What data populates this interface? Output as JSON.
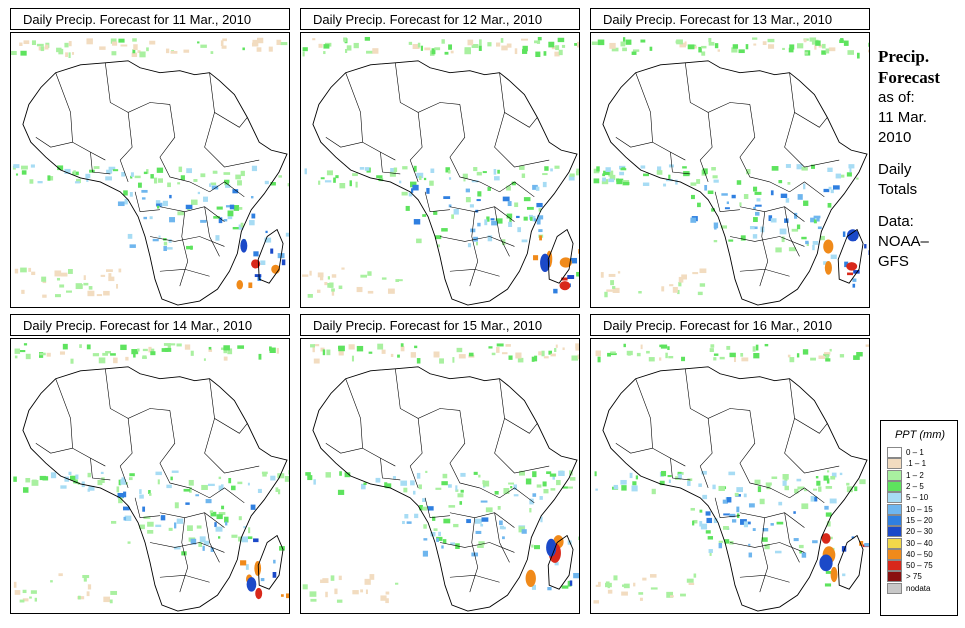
{
  "panels": [
    {
      "title": "Daily Precip. Forecast for  11 Mar., 2010",
      "seed": 11
    },
    {
      "title": "Daily Precip. Forecast for  12 Mar., 2010",
      "seed": 12
    },
    {
      "title": "Daily Precip. Forecast for  13 Mar., 2010",
      "seed": 13
    },
    {
      "title": "Daily Precip. Forecast for  14 Mar., 2010",
      "seed": 14
    },
    {
      "title": "Daily Precip. Forecast for  15 Mar., 2010",
      "seed": 15
    },
    {
      "title": "Daily Precip. Forecast for  16 Mar., 2010",
      "seed": 16
    }
  ],
  "info": {
    "heading1": "Precip.",
    "heading2": "Forecast",
    "asof": "as of:",
    "date1": "11 Mar.",
    "date2": "2010",
    "daily1": "Daily",
    "daily2": "Totals",
    "data1": "Data:",
    "data2": "NOAA–",
    "data3": "GFS"
  },
  "legend": {
    "title": "PPT (mm)",
    "items": [
      {
        "label": "0 – 1",
        "color": "#ffffff"
      },
      {
        "label": ".1 – 1",
        "color": "#f2dcc0"
      },
      {
        "label": "1 – 2",
        "color": "#a9f0a0"
      },
      {
        "label": "2 – 5",
        "color": "#5ee35e"
      },
      {
        "label": "5 – 10",
        "color": "#a7dcf4"
      },
      {
        "label": "10 – 15",
        "color": "#6fb6ee"
      },
      {
        "label": "15 – 20",
        "color": "#2f7fe0"
      },
      {
        "label": "20 – 30",
        "color": "#1b49c8"
      },
      {
        "label": "30 – 40",
        "color": "#f2d84a"
      },
      {
        "label": "40 – 50",
        "color": "#f08a1a"
      },
      {
        "label": "50 – 75",
        "color": "#d8281a"
      },
      {
        "label": "> 75",
        "color": "#8a1010"
      },
      {
        "label": "nodata",
        "color": "#c8c8c8"
      }
    ]
  }
}
